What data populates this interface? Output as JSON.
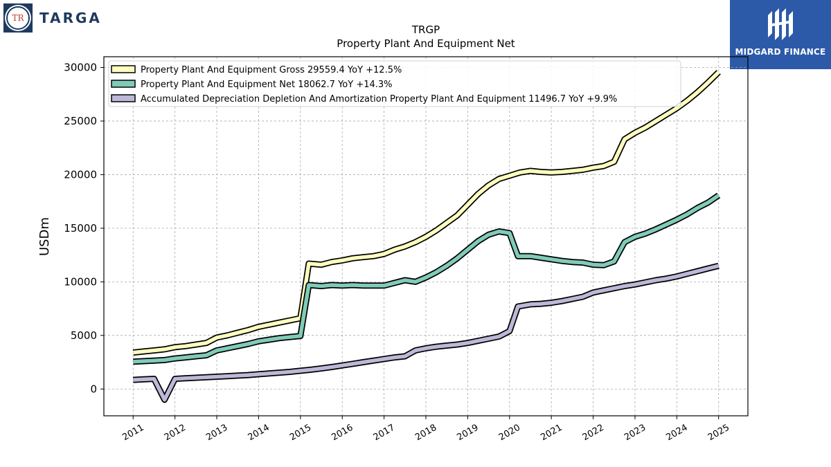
{
  "logos": {
    "left_text": "TARGA",
    "left_emblem_text": "TR",
    "right_text": "MIDGARD FINANCE",
    "right_icon": "midgard-emblem-icon"
  },
  "chart_data": {
    "type": "line",
    "title": "TRGP",
    "subtitle": "Property Plant And Equipment Net",
    "xlabel": "",
    "ylabel": "USDm",
    "xlim": [
      2010.3,
      2025.7
    ],
    "ylim": [
      -2500,
      31000
    ],
    "x_ticks": [
      2011,
      2012,
      2013,
      2014,
      2015,
      2016,
      2017,
      2018,
      2019,
      2020,
      2021,
      2022,
      2023,
      2024,
      2025
    ],
    "x_tick_labels": [
      "2011",
      "2012",
      "2013",
      "2014",
      "2015",
      "2016",
      "2017",
      "2018",
      "2019",
      "2020",
      "2021",
      "2022",
      "2023",
      "2024",
      "2025"
    ],
    "y_ticks": [
      0,
      5000,
      10000,
      15000,
      20000,
      25000,
      30000
    ],
    "y_tick_labels": [
      "0",
      "5000",
      "10000",
      "15000",
      "20000",
      "25000",
      "30000"
    ],
    "grid": true,
    "legend_position": "top-left",
    "series": [
      {
        "name": "Property Plant And Equipment Gross  29559.4 YoY +12.5%",
        "color": "#ffffbf",
        "points": [
          [
            2011.0,
            3400
          ],
          [
            2011.25,
            3500
          ],
          [
            2011.5,
            3600
          ],
          [
            2011.75,
            3700
          ],
          [
            2012.0,
            3900
          ],
          [
            2012.25,
            4000
          ],
          [
            2012.5,
            4150
          ],
          [
            2012.75,
            4300
          ],
          [
            2013.0,
            4800
          ],
          [
            2013.25,
            5000
          ],
          [
            2013.5,
            5250
          ],
          [
            2013.75,
            5500
          ],
          [
            2014.0,
            5800
          ],
          [
            2014.25,
            6000
          ],
          [
            2014.5,
            6200
          ],
          [
            2014.75,
            6400
          ],
          [
            2015.0,
            6600
          ],
          [
            2015.2,
            11700
          ],
          [
            2015.5,
            11600
          ],
          [
            2015.75,
            11850
          ],
          [
            2016.0,
            12000
          ],
          [
            2016.25,
            12200
          ],
          [
            2016.5,
            12300
          ],
          [
            2016.75,
            12400
          ],
          [
            2017.0,
            12600
          ],
          [
            2017.25,
            13000
          ],
          [
            2017.5,
            13300
          ],
          [
            2017.75,
            13700
          ],
          [
            2018.0,
            14200
          ],
          [
            2018.25,
            14800
          ],
          [
            2018.5,
            15500
          ],
          [
            2018.75,
            16200
          ],
          [
            2019.0,
            17200
          ],
          [
            2019.25,
            18200
          ],
          [
            2019.5,
            19000
          ],
          [
            2019.75,
            19600
          ],
          [
            2020.0,
            19900
          ],
          [
            2020.25,
            20200
          ],
          [
            2020.5,
            20350
          ],
          [
            2020.75,
            20250
          ],
          [
            2021.0,
            20200
          ],
          [
            2021.25,
            20250
          ],
          [
            2021.5,
            20350
          ],
          [
            2021.75,
            20450
          ],
          [
            2022.0,
            20650
          ],
          [
            2022.25,
            20800
          ],
          [
            2022.5,
            21200
          ],
          [
            2022.75,
            23300
          ],
          [
            2023.0,
            23900
          ],
          [
            2023.25,
            24400
          ],
          [
            2023.5,
            25000
          ],
          [
            2023.75,
            25600
          ],
          [
            2024.0,
            26200
          ],
          [
            2024.25,
            26900
          ],
          [
            2024.5,
            27700
          ],
          [
            2024.75,
            28600
          ],
          [
            2025.0,
            29559.4
          ]
        ]
      },
      {
        "name": "Property Plant And Equipment Net  18062.7 YoY +14.3%",
        "color": "#80cbb8",
        "points": [
          [
            2011.0,
            2550
          ],
          [
            2011.25,
            2600
          ],
          [
            2011.5,
            2650
          ],
          [
            2011.75,
            2700
          ],
          [
            2012.0,
            2850
          ],
          [
            2012.25,
            2950
          ],
          [
            2012.5,
            3050
          ],
          [
            2012.75,
            3150
          ],
          [
            2013.0,
            3600
          ],
          [
            2013.25,
            3800
          ],
          [
            2013.5,
            4000
          ],
          [
            2013.75,
            4200
          ],
          [
            2014.0,
            4450
          ],
          [
            2014.25,
            4600
          ],
          [
            2014.5,
            4750
          ],
          [
            2014.75,
            4850
          ],
          [
            2015.0,
            4950
          ],
          [
            2015.2,
            9700
          ],
          [
            2015.5,
            9600
          ],
          [
            2015.75,
            9700
          ],
          [
            2016.0,
            9650
          ],
          [
            2016.25,
            9700
          ],
          [
            2016.5,
            9650
          ],
          [
            2016.75,
            9650
          ],
          [
            2017.0,
            9650
          ],
          [
            2017.25,
            9900
          ],
          [
            2017.5,
            10150
          ],
          [
            2017.75,
            10000
          ],
          [
            2018.0,
            10400
          ],
          [
            2018.25,
            10900
          ],
          [
            2018.5,
            11500
          ],
          [
            2018.75,
            12200
          ],
          [
            2019.0,
            13000
          ],
          [
            2019.25,
            13800
          ],
          [
            2019.5,
            14400
          ],
          [
            2019.75,
            14700
          ],
          [
            2020.0,
            14550
          ],
          [
            2020.2,
            12400
          ],
          [
            2020.5,
            12400
          ],
          [
            2020.75,
            12250
          ],
          [
            2021.0,
            12100
          ],
          [
            2021.25,
            11950
          ],
          [
            2021.5,
            11850
          ],
          [
            2021.75,
            11800
          ],
          [
            2022.0,
            11600
          ],
          [
            2022.25,
            11550
          ],
          [
            2022.5,
            11900
          ],
          [
            2022.75,
            13700
          ],
          [
            2023.0,
            14200
          ],
          [
            2023.25,
            14500
          ],
          [
            2023.5,
            14900
          ],
          [
            2023.75,
            15350
          ],
          [
            2024.0,
            15800
          ],
          [
            2024.25,
            16300
          ],
          [
            2024.5,
            16900
          ],
          [
            2024.75,
            17400
          ],
          [
            2025.0,
            18062.7
          ]
        ]
      },
      {
        "name": "Accumulated Depreciation Depletion And Amortization Property Plant And Equipment  11496.7 YoY +9.9%",
        "color": "#bcb8d8",
        "points": [
          [
            2011.0,
            850
          ],
          [
            2011.25,
            900
          ],
          [
            2011.5,
            950
          ],
          [
            2011.75,
            -1000
          ],
          [
            2012.0,
            950
          ],
          [
            2012.25,
            1000
          ],
          [
            2012.5,
            1050
          ],
          [
            2012.75,
            1100
          ],
          [
            2013.0,
            1150
          ],
          [
            2013.25,
            1200
          ],
          [
            2013.5,
            1250
          ],
          [
            2013.75,
            1300
          ],
          [
            2014.0,
            1380
          ],
          [
            2014.25,
            1450
          ],
          [
            2014.5,
            1530
          ],
          [
            2014.75,
            1600
          ],
          [
            2015.0,
            1700
          ],
          [
            2015.25,
            1800
          ],
          [
            2015.5,
            1920
          ],
          [
            2015.75,
            2050
          ],
          [
            2016.0,
            2200
          ],
          [
            2016.25,
            2350
          ],
          [
            2016.5,
            2500
          ],
          [
            2016.75,
            2650
          ],
          [
            2017.0,
            2800
          ],
          [
            2017.25,
            2950
          ],
          [
            2017.5,
            3050
          ],
          [
            2017.75,
            3600
          ],
          [
            2018.0,
            3800
          ],
          [
            2018.25,
            3950
          ],
          [
            2018.5,
            4050
          ],
          [
            2018.75,
            4150
          ],
          [
            2019.0,
            4300
          ],
          [
            2019.25,
            4500
          ],
          [
            2019.5,
            4700
          ],
          [
            2019.75,
            4900
          ],
          [
            2020.0,
            5400
          ],
          [
            2020.2,
            7700
          ],
          [
            2020.5,
            7900
          ],
          [
            2020.75,
            7950
          ],
          [
            2021.0,
            8050
          ],
          [
            2021.25,
            8200
          ],
          [
            2021.5,
            8400
          ],
          [
            2021.75,
            8600
          ],
          [
            2022.0,
            9000
          ],
          [
            2022.25,
            9200
          ],
          [
            2022.5,
            9400
          ],
          [
            2022.75,
            9600
          ],
          [
            2023.0,
            9750
          ],
          [
            2023.25,
            9950
          ],
          [
            2023.5,
            10150
          ],
          [
            2023.75,
            10300
          ],
          [
            2024.0,
            10500
          ],
          [
            2024.25,
            10750
          ],
          [
            2024.5,
            11000
          ],
          [
            2024.75,
            11250
          ],
          [
            2025.0,
            11496.7
          ]
        ]
      }
    ]
  }
}
